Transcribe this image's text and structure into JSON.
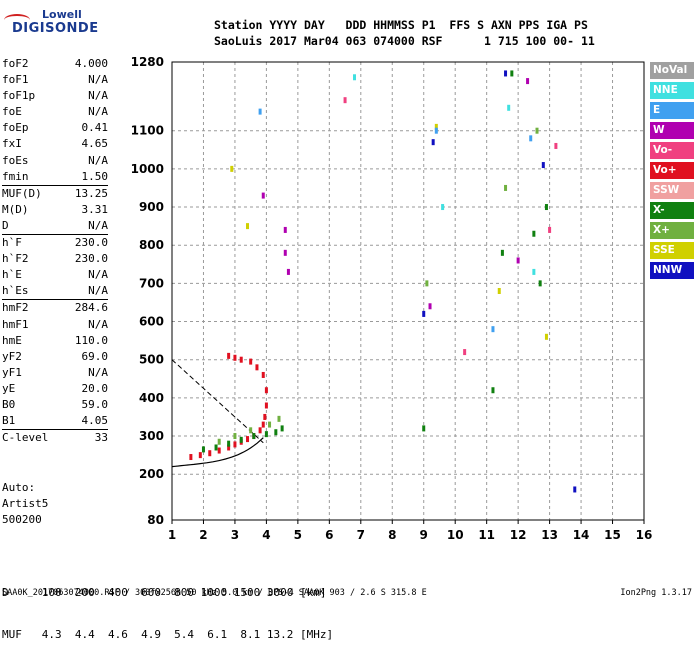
{
  "logo": {
    "line1": "Lowell",
    "line2": "DIGISONDE"
  },
  "header": {
    "line1": "Station YYYY DAY   DDD HHMMSS P1  FFS S AXN PPS IGA PS",
    "line2": "SaoLuis 2017 Mar04 063 074000 RSF      1 715 100 00- 11"
  },
  "params": {
    "group1": [
      {
        "k": "foF2",
        "v": "4.000"
      },
      {
        "k": "foF1",
        "v": "N/A"
      },
      {
        "k": "foF1p",
        "v": "N/A"
      },
      {
        "k": "foE",
        "v": "N/A"
      },
      {
        "k": "foEp",
        "v": "0.41"
      },
      {
        "k": "fxI",
        "v": "4.65"
      },
      {
        "k": "foEs",
        "v": "N/A"
      },
      {
        "k": "fmin",
        "v": "1.50"
      }
    ],
    "group2": [
      {
        "k": "MUF(D)",
        "v": "13.25"
      },
      {
        "k": "M(D)",
        "v": "3.31"
      },
      {
        "k": "D",
        "v": "N/A"
      }
    ],
    "group3": [
      {
        "k": "h`F",
        "v": "230.0"
      },
      {
        "k": "h`F2",
        "v": "230.0"
      },
      {
        "k": "h`E",
        "v": "N/A"
      },
      {
        "k": "h`Es",
        "v": "N/A"
      }
    ],
    "group4": [
      {
        "k": "hmF2",
        "v": "284.6"
      },
      {
        "k": "hmF1",
        "v": "N/A"
      },
      {
        "k": "hmE",
        "v": "110.0"
      },
      {
        "k": "yF2",
        "v": "69.0"
      },
      {
        "k": "yF1",
        "v": "N/A"
      },
      {
        "k": "yE",
        "v": "20.0"
      },
      {
        "k": "B0",
        "v": "59.0"
      },
      {
        "k": "B1",
        "v": "4.05"
      }
    ],
    "group5": [
      {
        "k": "C-level",
        "v": "33"
      }
    ]
  },
  "auto": {
    "line1": "Auto:",
    "line2": "Artist5",
    "line3": "500200"
  },
  "legend": [
    {
      "label": "NoVal",
      "color": "#a0a0a0"
    },
    {
      "label": "NNE",
      "color": "#40e0e0"
    },
    {
      "label": "E",
      "color": "#40a0f0"
    },
    {
      "label": "W",
      "color": "#b000b0"
    },
    {
      "label": "Vo-",
      "color": "#f04080"
    },
    {
      "label": "Vo+",
      "color": "#e01020"
    },
    {
      "label": "SSW",
      "color": "#f0a0a0"
    },
    {
      "label": "X-",
      "color": "#108010"
    },
    {
      "label": "X+",
      "color": "#70b040"
    },
    {
      "label": "SSE",
      "color": "#d0d000"
    },
    {
      "label": "NNW",
      "color": "#1010c0"
    }
  ],
  "table": {
    "row1": "D     100  200  400  600  800 1000 1500 3000 [km]",
    "row2": "MUF   4.3  4.4  4.6  4.9  5.4  6.1  8.1 13.2 [MHz]"
  },
  "footer": {
    "left": "SAA0K_2017063074000.RSF / 300fx256h 50 kHz 5.0 km / DPS-4 SAA0K 903 / 2.6 S 315.8 E",
    "right": "Ion2Png 1.3.17"
  },
  "chart_data": {
    "type": "scatter",
    "title": "",
    "xlabel": "",
    "ylabel": "",
    "xlim": [
      1,
      16
    ],
    "ylim": [
      80,
      1280
    ],
    "x_ticks": [
      1,
      2,
      3,
      4,
      5,
      6,
      7,
      8,
      9,
      10,
      11,
      12,
      13,
      14,
      15,
      16
    ],
    "y_ticks": [
      80,
      200,
      300,
      400,
      500,
      600,
      700,
      800,
      900,
      1000,
      1100,
      1280
    ],
    "grid": true,
    "series": [
      {
        "name": "Vo+",
        "color": "#e01020",
        "points": [
          [
            1.6,
            245
          ],
          [
            1.9,
            250
          ],
          [
            2.2,
            255
          ],
          [
            2.5,
            262
          ],
          [
            2.8,
            270
          ],
          [
            3.0,
            278
          ],
          [
            3.2,
            285
          ],
          [
            3.4,
            292
          ],
          [
            3.6,
            300
          ],
          [
            3.8,
            315
          ],
          [
            3.9,
            330
          ],
          [
            3.95,
            350
          ],
          [
            4.0,
            380
          ],
          [
            4.0,
            420
          ],
          [
            3.9,
            460
          ],
          [
            3.7,
            480
          ],
          [
            3.5,
            495
          ],
          [
            3.2,
            500
          ],
          [
            3.0,
            505
          ],
          [
            2.8,
            510
          ]
        ]
      },
      {
        "name": "X-",
        "color": "#108010",
        "points": [
          [
            2.0,
            265
          ],
          [
            2.4,
            270
          ],
          [
            2.8,
            280
          ],
          [
            3.2,
            290
          ],
          [
            3.6,
            300
          ],
          [
            4.0,
            305
          ],
          [
            4.3,
            310
          ],
          [
            4.5,
            320
          ],
          [
            9.0,
            320
          ],
          [
            11.2,
            420
          ],
          [
            11.5,
            780
          ],
          [
            11.8,
            1250
          ],
          [
            12.5,
            830
          ],
          [
            12.7,
            700
          ],
          [
            12.9,
            900
          ]
        ]
      },
      {
        "name": "X+",
        "color": "#70b040",
        "points": [
          [
            2.5,
            285
          ],
          [
            3.0,
            300
          ],
          [
            3.5,
            315
          ],
          [
            4.1,
            330
          ],
          [
            4.4,
            345
          ],
          [
            9.1,
            700
          ],
          [
            11.6,
            950
          ],
          [
            12.6,
            1100
          ]
        ]
      },
      {
        "name": "W",
        "color": "#b000b0",
        "points": [
          [
            4.6,
            780
          ],
          [
            4.7,
            730
          ],
          [
            4.6,
            840
          ],
          [
            3.9,
            930
          ],
          [
            9.2,
            640
          ],
          [
            12.3,
            1230
          ],
          [
            12.0,
            760
          ]
        ]
      },
      {
        "name": "NNW",
        "color": "#1010c0",
        "points": [
          [
            11.6,
            1250
          ],
          [
            9.3,
            1070
          ],
          [
            12.8,
            1010
          ],
          [
            13.8,
            160
          ],
          [
            9.0,
            620
          ]
        ]
      },
      {
        "name": "Vo-",
        "color": "#f04080",
        "points": [
          [
            6.5,
            1180
          ],
          [
            13.2,
            1060
          ],
          [
            13.0,
            840
          ],
          [
            10.3,
            520
          ]
        ]
      },
      {
        "name": "SSE",
        "color": "#d0d000",
        "points": [
          [
            9.4,
            1110
          ],
          [
            11.4,
            680
          ],
          [
            12.9,
            560
          ],
          [
            2.9,
            1000
          ],
          [
            3.4,
            850
          ]
        ]
      },
      {
        "name": "NNE",
        "color": "#40e0e0",
        "points": [
          [
            6.8,
            1240
          ],
          [
            9.6,
            900
          ],
          [
            11.7,
            1160
          ],
          [
            12.5,
            730
          ]
        ]
      },
      {
        "name": "E",
        "color": "#40a0f0",
        "points": [
          [
            3.8,
            1150
          ],
          [
            9.4,
            1100
          ],
          [
            12.4,
            1080
          ],
          [
            11.2,
            580
          ]
        ]
      }
    ]
  }
}
